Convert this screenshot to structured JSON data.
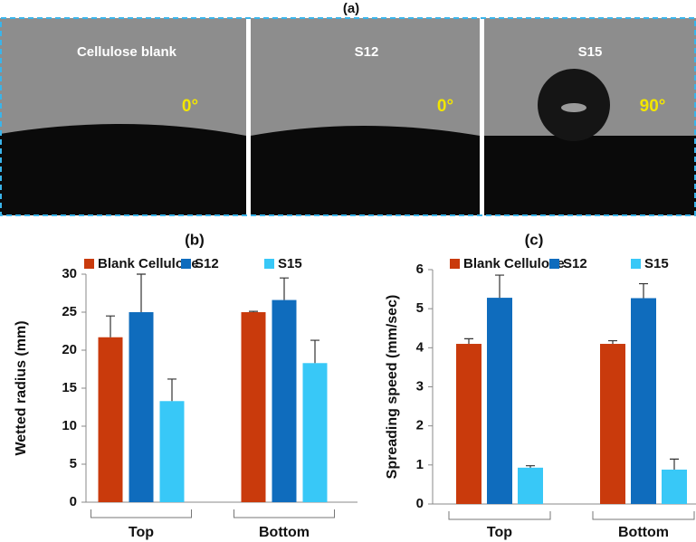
{
  "panel_a": {
    "title": "(a)",
    "images": [
      {
        "label": "Cellulose blank",
        "angle": "0°"
      },
      {
        "label": "S12",
        "angle": "0°"
      },
      {
        "label": "S15",
        "angle": "90°"
      }
    ]
  },
  "chart_data": [
    {
      "type": "bar",
      "title": "(b)",
      "ylabel": "Wetted radius (mm)",
      "categories": [
        "Top",
        "Bottom"
      ],
      "series": [
        {
          "name": "Blank Cellulose",
          "color": "#c93a0c",
          "values": [
            21.7,
            25.0
          ],
          "errors": [
            2.8,
            0.1
          ]
        },
        {
          "name": "S12",
          "color": "#0f6cbd",
          "values": [
            25.0,
            26.6
          ],
          "errors": [
            5.0,
            2.9
          ]
        },
        {
          "name": "S15",
          "color": "#38c8f7",
          "values": [
            13.3,
            18.3
          ],
          "errors": [
            2.9,
            3.0
          ]
        }
      ],
      "ylim": [
        0,
        30
      ],
      "yticks": [
        0,
        5,
        10,
        15,
        20,
        25,
        30
      ]
    },
    {
      "type": "bar",
      "title": "(c)",
      "ylabel": "Spreading speed (mm/sec)",
      "categories": [
        "Top",
        "Bottom"
      ],
      "series": [
        {
          "name": "Blank Cellulose",
          "color": "#c93a0c",
          "values": [
            4.1,
            4.1
          ],
          "errors": [
            0.13,
            0.08
          ]
        },
        {
          "name": "S12",
          "color": "#0f6cbd",
          "values": [
            5.28,
            5.27
          ],
          "errors": [
            0.58,
            0.37
          ]
        },
        {
          "name": "S15",
          "color": "#38c8f7",
          "values": [
            0.93,
            0.88
          ],
          "errors": [
            0.05,
            0.27
          ]
        }
      ],
      "ylim": [
        0,
        6
      ],
      "yticks": [
        0,
        1,
        2,
        3,
        4,
        5,
        6
      ]
    }
  ]
}
